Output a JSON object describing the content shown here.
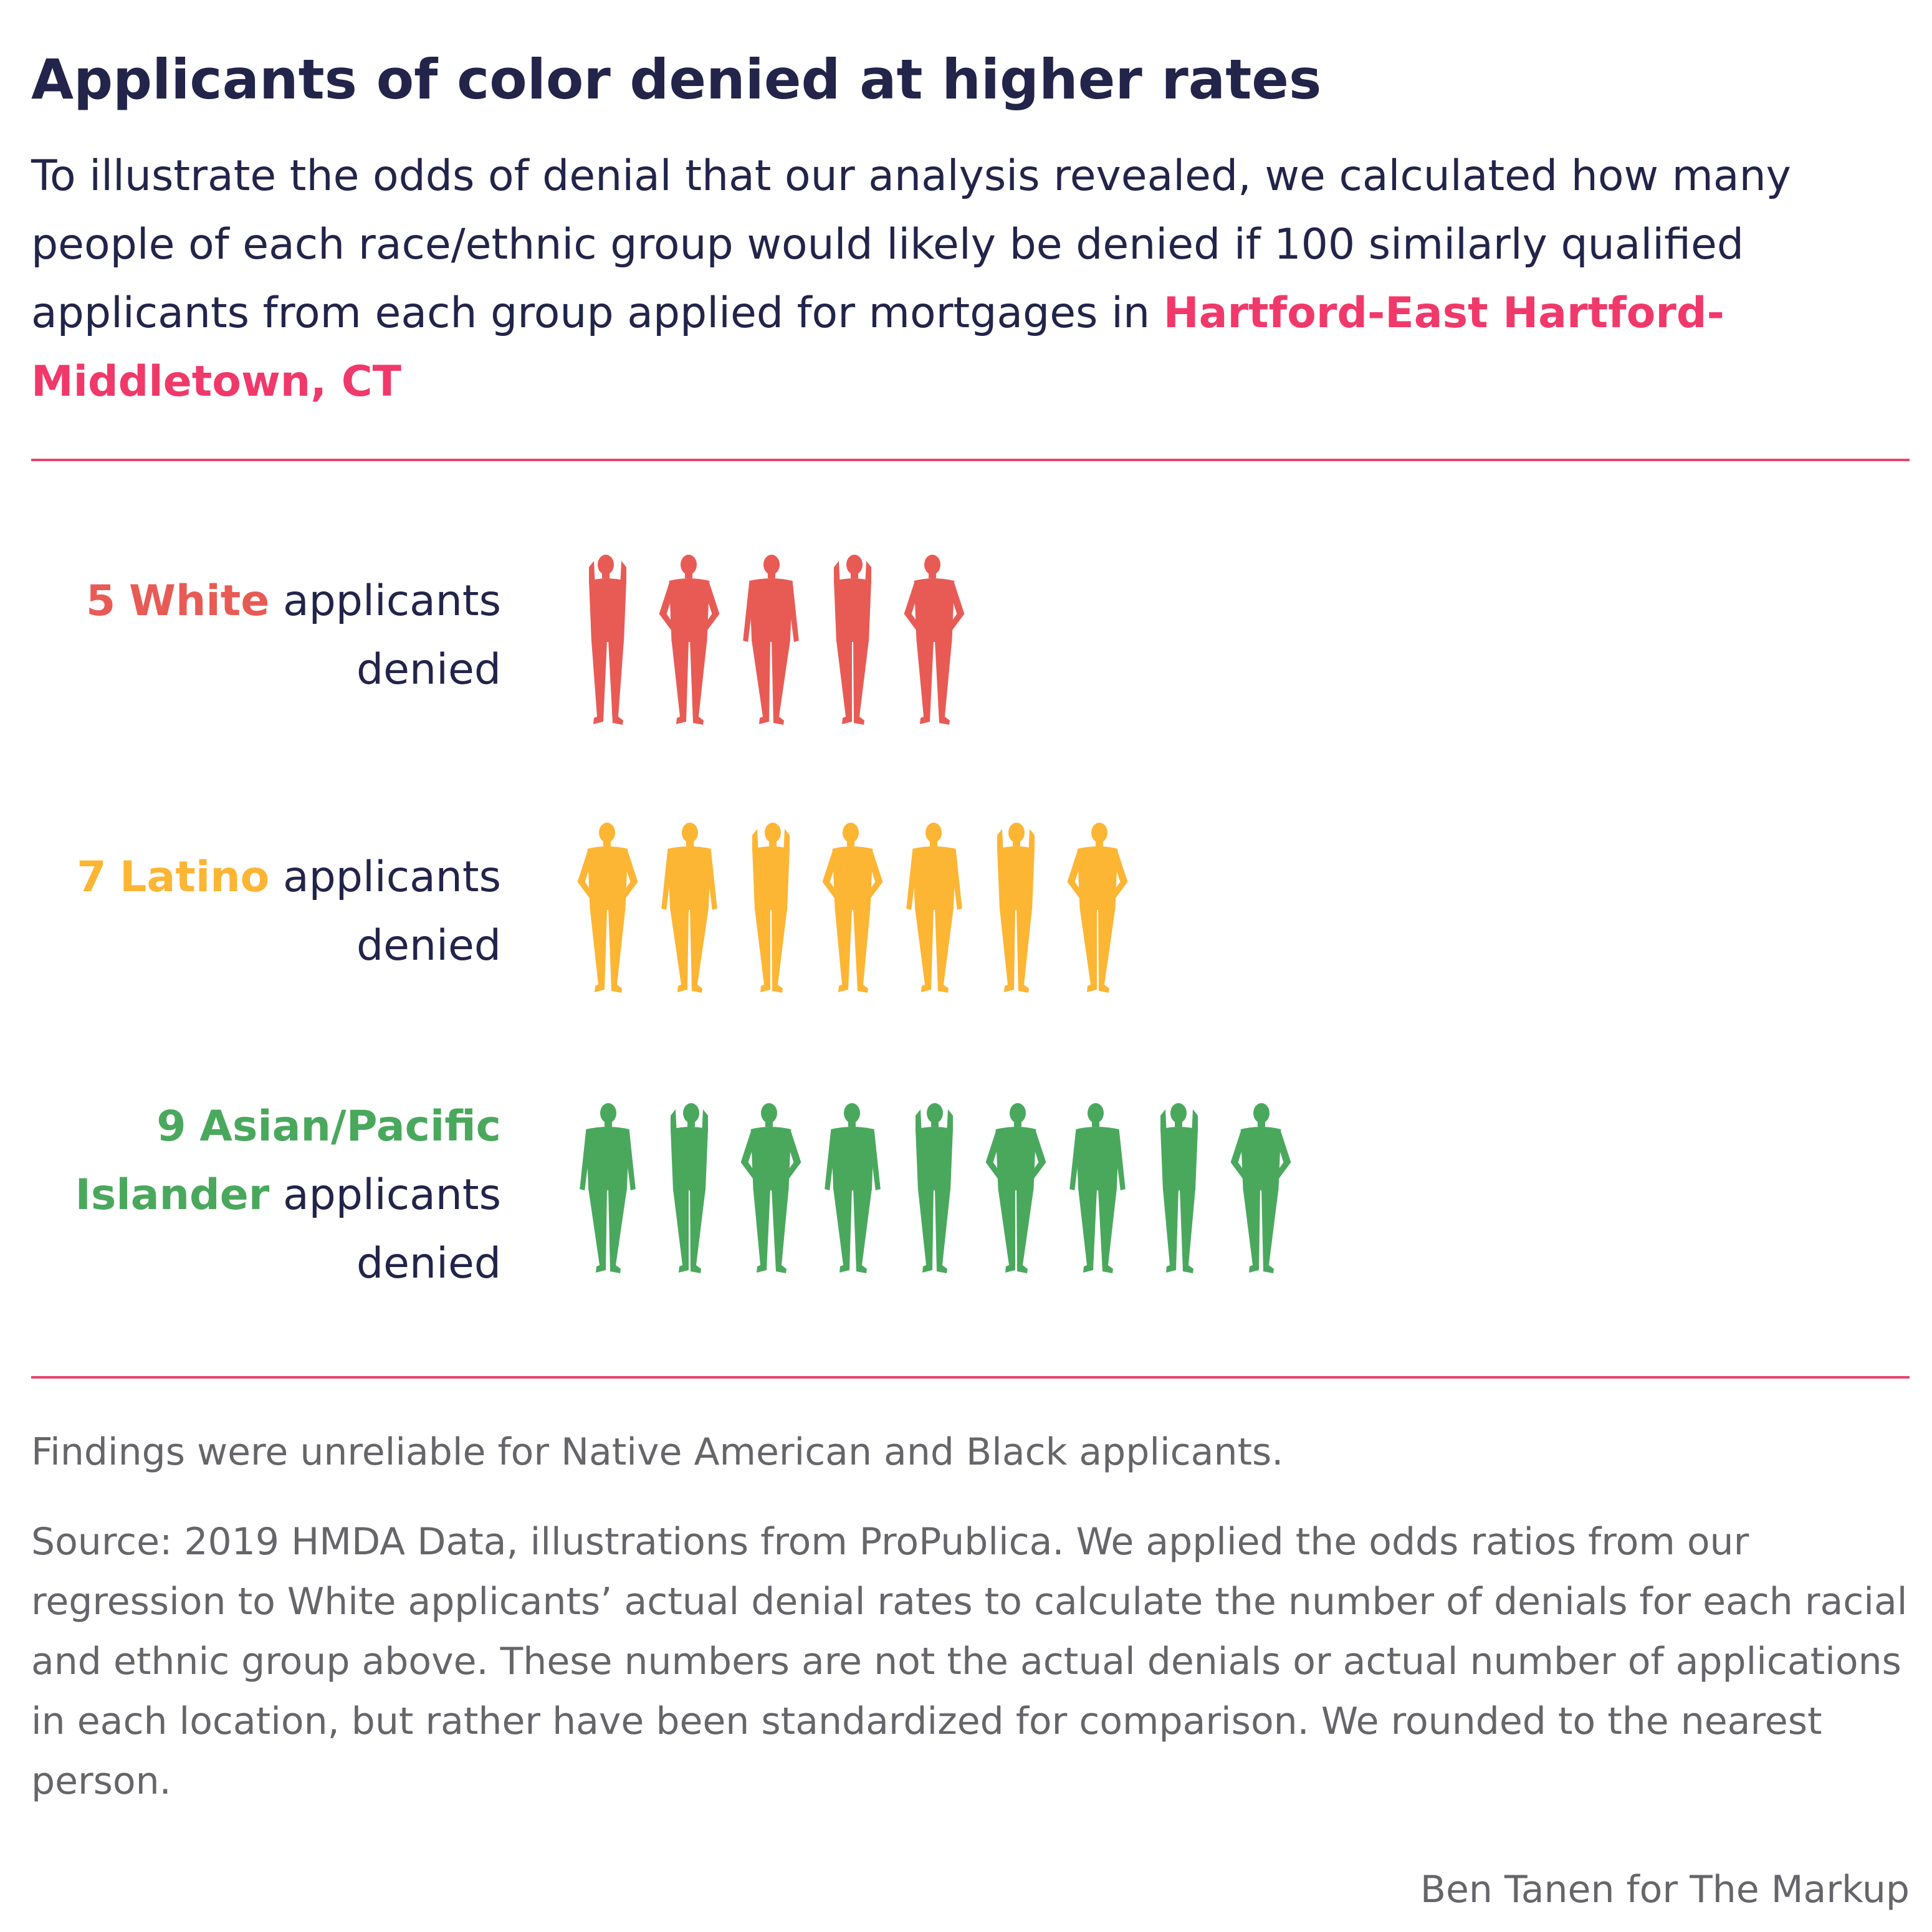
{
  "title": "Applicants of color denied at higher rates",
  "subtitle": {
    "text": "To illustrate the odds of denial that our analysis revealed, we calculated how many people of each race/ethnic group would likely be denied if 100 similarly qualified applicants from each group applied for mortgages in ",
    "place": "Hartford-East Hartford-Middletown, CT"
  },
  "colors": {
    "title": "#22244a",
    "accent": "#f0396a",
    "rule": "#e9436e",
    "footnote": "#66656a"
  },
  "chart_data": {
    "type": "pictogram",
    "unit": "people denied per 100 similarly qualified applicants",
    "rows": [
      {
        "count": 5,
        "count_label": "5",
        "group": "White",
        "label_rest": "applicants",
        "label_end": "denied",
        "color": "#e85b55"
      },
      {
        "count": 7,
        "count_label": "7",
        "group": "Latino",
        "label_rest": "applicants",
        "label_end": "denied",
        "color": "#fdb534"
      },
      {
        "count": 9,
        "count_label": "9",
        "group": "Asian/Pacific Islander",
        "group_line1": "Asian/Pacific",
        "group_line2": "Islander",
        "label_rest": "applicants",
        "label_end": "denied",
        "color": "#4aa85d"
      }
    ]
  },
  "footnote": "Findings were unreliable for Native American and Black applicants.",
  "source": "Source: 2019 HMDA Data, illustrations from ProPublica. We applied the odds ratios from our regression to White applicants’ actual denial rates to calculate the number of denials for each racial and ethnic group above. These numbers are not the actual denials or actual number of applications in each location, but rather have been standardized for comparison. We rounded to the nearest person.",
  "credit": "Ben Tanen for The Markup"
}
